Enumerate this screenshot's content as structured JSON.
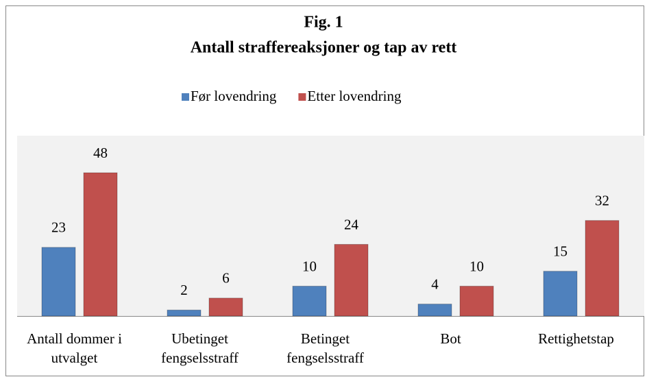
{
  "chart_data": {
    "type": "bar",
    "title": "Fig. 1",
    "subtitle": "Antall straffereaksjoner og tap av rett",
    "categories": [
      "Antall dommer i utvalget",
      "Ubetinget fengselsstraff",
      "Betinget fengselsstraff",
      "Bot",
      "Rettighetstap"
    ],
    "series": [
      {
        "name": "Før lovendring",
        "color": "#4f81bd",
        "values": [
          23,
          2,
          10,
          4,
          15
        ]
      },
      {
        "name": "Etter lovendring",
        "color": "#c0504d",
        "values": [
          48,
          6,
          24,
          10,
          32
        ]
      }
    ],
    "legend": "top"
  }
}
